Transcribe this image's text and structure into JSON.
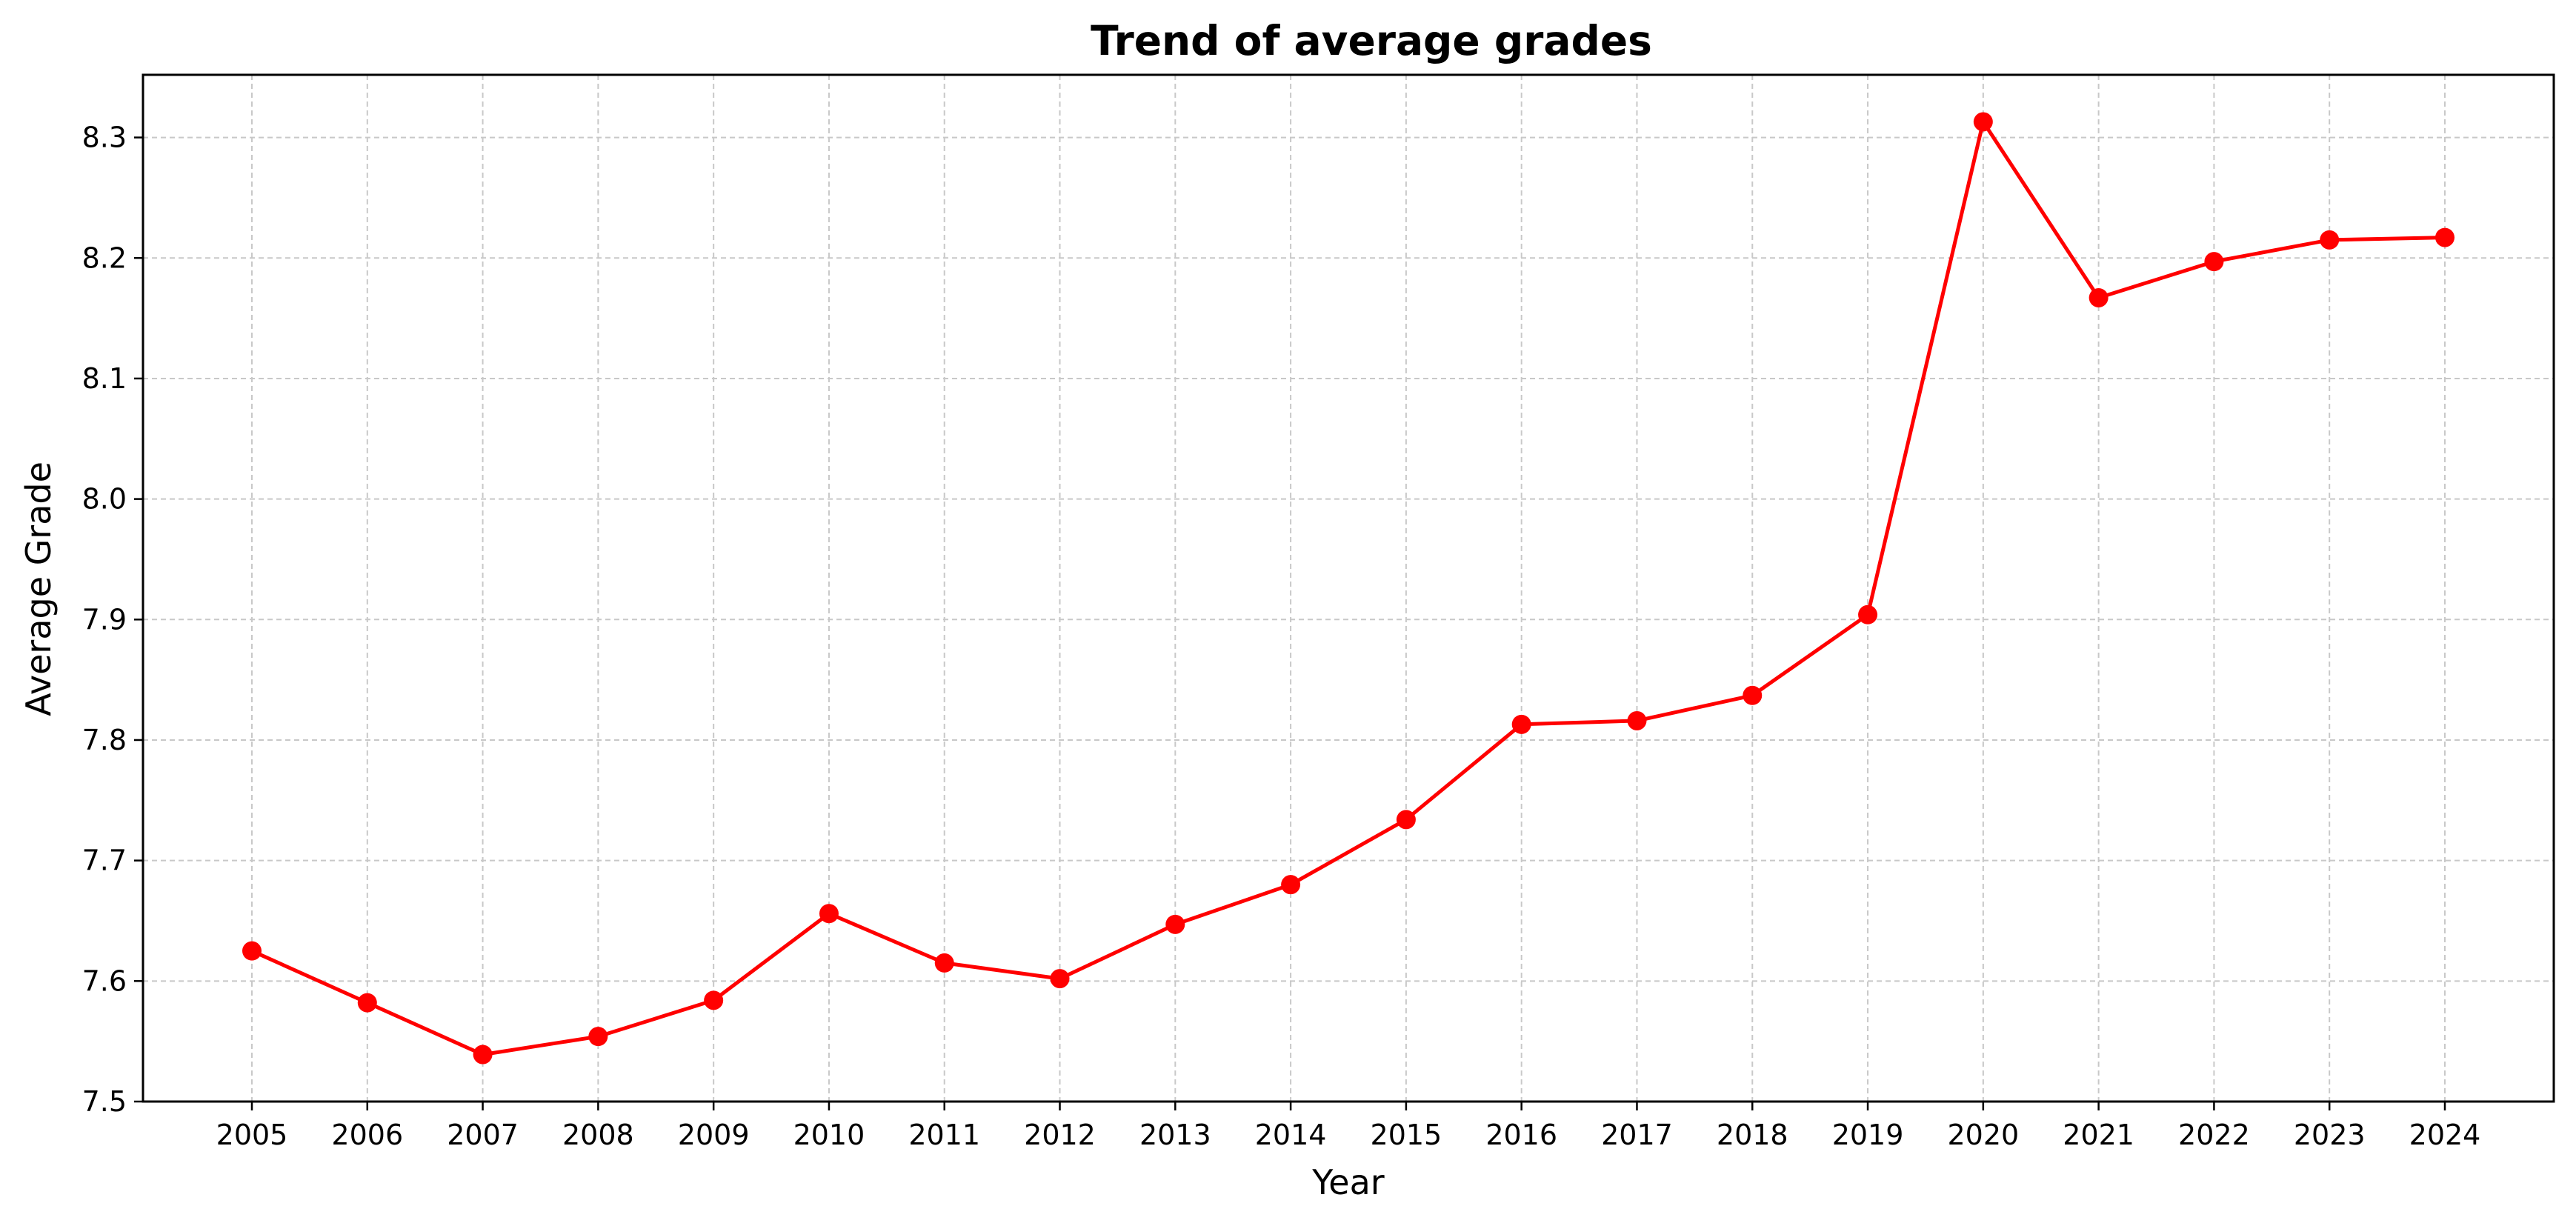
{
  "chart_data": {
    "type": "line",
    "title": "Trend of average grades",
    "xlabel": "Year",
    "ylabel": "Average Grade",
    "x": [
      "2005",
      "2006",
      "2007",
      "2008",
      "2009",
      "2010",
      "2011",
      "2012",
      "2013",
      "2014",
      "2015",
      "2016",
      "2017",
      "2018",
      "2019",
      "2020",
      "2021",
      "2022",
      "2023",
      "2024"
    ],
    "series": [
      {
        "values": [
          7.625,
          7.582,
          7.539,
          7.554,
          7.584,
          7.656,
          7.615,
          7.602,
          7.647,
          7.68,
          7.734,
          7.813,
          7.816,
          7.837,
          7.904,
          8.313,
          8.167,
          8.197,
          8.215,
          8.217
        ],
        "color": "#ff0000",
        "marker": "circle"
      }
    ],
    "yticks": [
      "7.5",
      "7.6",
      "7.7",
      "7.8",
      "7.9",
      "8.0",
      "8.1",
      "8.2",
      "8.3"
    ],
    "ylim": [
      7.5,
      8.352
    ],
    "grid": true,
    "legend": "none"
  }
}
